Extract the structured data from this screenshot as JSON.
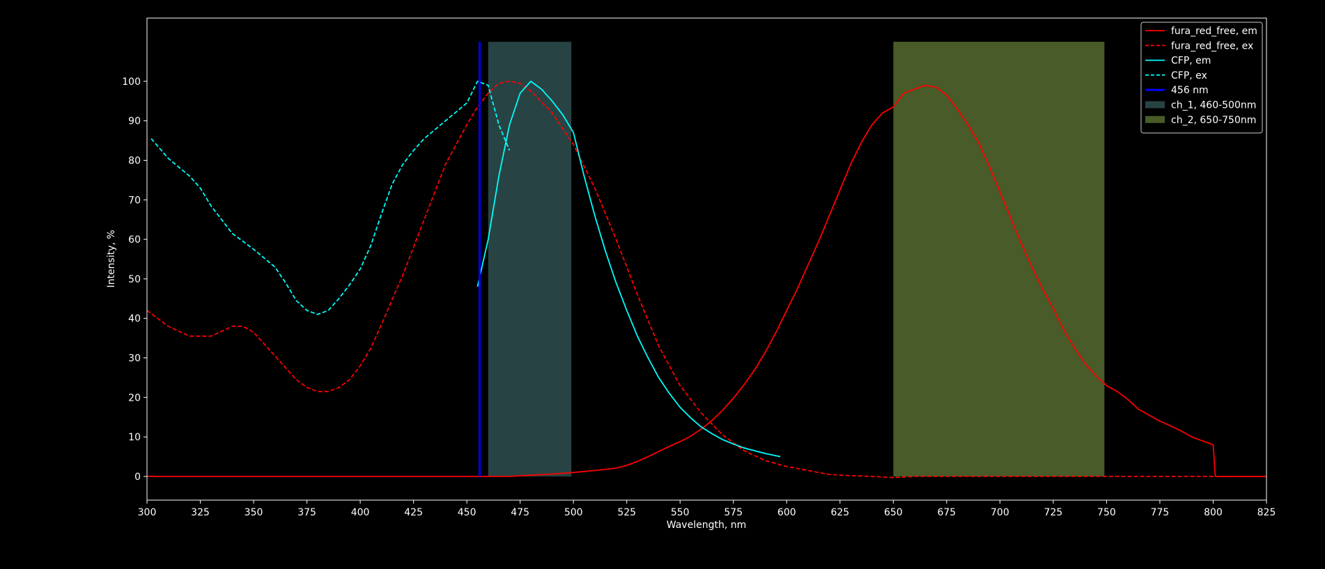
{
  "chart_data": {
    "type": "line",
    "title": "",
    "xlabel": "Wavelength, nm",
    "ylabel": "Intensity, %",
    "xlim": [
      300,
      825
    ],
    "ylim": [
      -6,
      116
    ],
    "xticks": [
      300,
      325,
      350,
      375,
      400,
      425,
      450,
      475,
      500,
      525,
      550,
      575,
      600,
      625,
      650,
      675,
      700,
      725,
      750,
      775,
      800,
      825
    ],
    "yticks": [
      0,
      10,
      20,
      30,
      40,
      50,
      60,
      70,
      80,
      90,
      100
    ],
    "grid": false,
    "legend_position": "top-right",
    "background": "#000000",
    "series": [
      {
        "name": "fura_red_free, em",
        "color": "#ff0000",
        "style": "solid",
        "x": [
          300,
          470,
          480,
          490,
          500,
          510,
          520,
          525,
          530,
          535,
          540,
          545,
          550,
          555,
          560,
          565,
          570,
          575,
          580,
          585,
          590,
          595,
          600,
          605,
          610,
          615,
          620,
          625,
          630,
          635,
          640,
          645,
          650,
          655,
          660,
          665,
          670,
          675,
          680,
          685,
          690,
          695,
          700,
          705,
          710,
          715,
          720,
          725,
          730,
          735,
          740,
          745,
          750,
          755,
          760,
          765,
          770,
          775,
          780,
          785,
          790,
          795,
          800,
          801,
          825
        ],
        "y": [
          0,
          0,
          0.3,
          0.6,
          1.0,
          1.5,
          2.1,
          2.8,
          3.8,
          5.0,
          6.3,
          7.6,
          8.8,
          10.2,
          12.0,
          14.2,
          16.8,
          19.8,
          23.2,
          27.0,
          31.5,
          36.5,
          42.0,
          47.5,
          53.5,
          59.5,
          66.0,
          72.5,
          79.0,
          84.5,
          89.0,
          92.0,
          93.5,
          97.0,
          98.0,
          99.0,
          98.5,
          96.5,
          93.0,
          89.0,
          84.5,
          78.5,
          72.0,
          65.5,
          59.0,
          53.0,
          47.5,
          42.5,
          37.0,
          32.5,
          28.5,
          25.5,
          23.0,
          21.5,
          19.5,
          17.0,
          15.5,
          14.0,
          12.8,
          11.5,
          10.0,
          9.0,
          8.0,
          0,
          0
        ]
      },
      {
        "name": "fura_red_free, ex",
        "color": "#ff0000",
        "style": "dashed",
        "x": [
          300,
          310,
          320,
          330,
          340,
          345,
          350,
          360,
          370,
          375,
          380,
          385,
          390,
          395,
          400,
          405,
          410,
          420,
          430,
          440,
          450,
          455,
          460,
          465,
          470,
          475,
          480,
          490,
          500,
          510,
          520,
          530,
          540,
          550,
          560,
          570,
          580,
          590,
          600,
          610,
          620,
          630,
          640,
          650,
          660,
          680,
          700,
          750,
          825
        ],
        "y": [
          42,
          38,
          35.5,
          35.5,
          38,
          38,
          36.5,
          30.5,
          24.5,
          22.5,
          21.5,
          21.5,
          22.5,
          24.5,
          28,
          32.5,
          38.5,
          51,
          65,
          79,
          89,
          93.5,
          97,
          99.5,
          100,
          99.5,
          97.5,
          92,
          84,
          73,
          60,
          46,
          33,
          23,
          16,
          10.5,
          6.5,
          4,
          2.5,
          1.5,
          0.5,
          0.2,
          0,
          -0.3,
          0,
          0,
          0,
          0,
          0
        ]
      },
      {
        "name": "CFP, em",
        "color": "#00ffff",
        "style": "solid",
        "x": [
          455,
          460,
          465,
          470,
          475,
          480,
          485,
          490,
          495,
          500,
          505,
          510,
          515,
          520,
          525,
          530,
          535,
          540,
          545,
          550,
          555,
          560,
          565,
          570,
          575,
          580,
          585,
          590,
          597
        ],
        "y": [
          48,
          60,
          76,
          89,
          97,
          100,
          98,
          95,
          91.5,
          87,
          76,
          66,
          57,
          49,
          42,
          35.5,
          30,
          25,
          21,
          17.5,
          14.8,
          12.5,
          10.8,
          9.3,
          8.2,
          7.2,
          6.5,
          5.8,
          5
        ]
      },
      {
        "name": "CFP, ex",
        "color": "#00ffff",
        "style": "dashed",
        "x": [
          302,
          310,
          320,
          325,
          330,
          340,
          350,
          360,
          365,
          370,
          375,
          380,
          385,
          390,
          395,
          400,
          405,
          410,
          415,
          420,
          425,
          430,
          440,
          450,
          455,
          460,
          465,
          470
        ],
        "y": [
          85.5,
          80.5,
          76,
          73,
          68.5,
          61.5,
          57.5,
          53,
          49,
          44.5,
          42,
          41,
          42,
          45,
          48.5,
          52.5,
          58.5,
          66.5,
          74,
          79,
          82.5,
          85.5,
          90,
          94.5,
          100,
          99,
          89,
          82.5
        ]
      }
    ],
    "vline": {
      "name": "456 nm",
      "x": 456,
      "color": "#0000ff"
    },
    "bands": [
      {
        "name": "ch_1, 460-500nm",
        "x0": 460,
        "x1": 499,
        "color": "#2f4f4f"
      },
      {
        "name": "ch_2, 650-750nm",
        "x0": 650,
        "x1": 749,
        "color": "#556b2f"
      }
    ]
  }
}
